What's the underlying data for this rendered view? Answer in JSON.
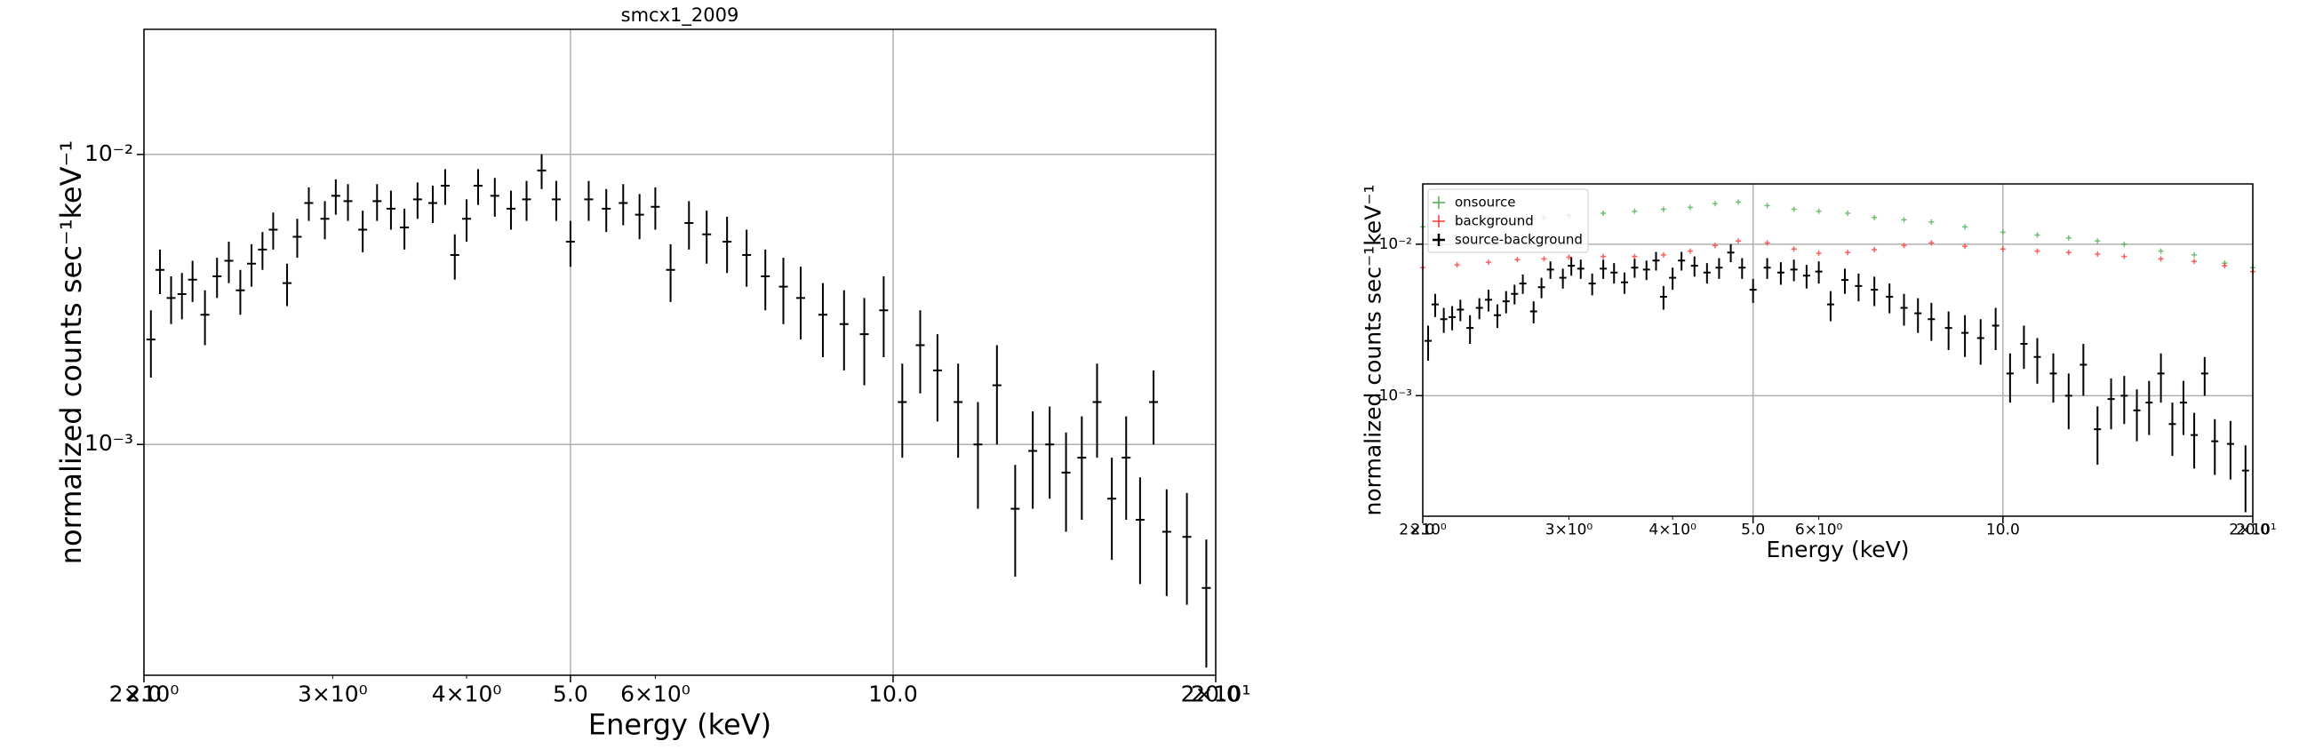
{
  "chart_data": [
    {
      "type": "errorbar",
      "title": "smcx1_2009",
      "xlabel": "Energy (keV)",
      "ylabel": "normalized counts sec⁻¹keV⁻¹",
      "xlog": true,
      "ylog": true,
      "grid": true,
      "color": "#000000",
      "xlim": [
        2,
        20
      ],
      "ylim": [
        0.00016,
        0.027
      ],
      "xticks": [
        {
          "value": 2,
          "label": "2.0"
        },
        {
          "value": 5,
          "label": "5.0"
        },
        {
          "value": 10,
          "label": "10.0"
        },
        {
          "value": 20,
          "label": "20.0"
        }
      ],
      "xminorticks": [
        {
          "value": 2,
          "label": "2×10⁰"
        },
        {
          "value": 3,
          "label": "3×10⁰"
        },
        {
          "value": 4,
          "label": "4×10⁰"
        },
        {
          "value": 6,
          "label": "6×10⁰"
        },
        {
          "value": 20,
          "label": "2×10¹"
        }
      ],
      "yticks": [
        {
          "value": 0.001,
          "label": "10⁻³"
        },
        {
          "value": 0.01,
          "label": "10⁻²"
        }
      ],
      "x": [
        2.03,
        2.07,
        2.12,
        2.17,
        2.22,
        2.28,
        2.34,
        2.4,
        2.46,
        2.52,
        2.58,
        2.64,
        2.72,
        2.78,
        2.85,
        2.95,
        3.02,
        3.1,
        3.2,
        3.3,
        3.4,
        3.5,
        3.6,
        3.72,
        3.82,
        3.9,
        4.0,
        4.1,
        4.25,
        4.4,
        4.55,
        4.7,
        4.85,
        5.0,
        5.2,
        5.4,
        5.6,
        5.8,
        6.0,
        6.2,
        6.45,
        6.7,
        7.0,
        7.3,
        7.6,
        7.9,
        8.2,
        8.6,
        9.0,
        9.4,
        9.8,
        10.2,
        10.6,
        11.0,
        11.5,
        12.0,
        12.5,
        13.0,
        13.5,
        14.0,
        14.5,
        15.0,
        15.5,
        16.0,
        16.5,
        17.0,
        17.5,
        18.0,
        18.8,
        19.6
      ],
      "values": [
        0.0023,
        0.004,
        0.0032,
        0.0033,
        0.0037,
        0.0028,
        0.0038,
        0.0043,
        0.0034,
        0.0042,
        0.0047,
        0.0055,
        0.0036,
        0.0052,
        0.0068,
        0.006,
        0.0072,
        0.0069,
        0.0055,
        0.0069,
        0.0065,
        0.0056,
        0.007,
        0.0068,
        0.0078,
        0.0045,
        0.006,
        0.0078,
        0.0072,
        0.0065,
        0.007,
        0.0088,
        0.007,
        0.005,
        0.007,
        0.0065,
        0.0068,
        0.0062,
        0.0066,
        0.004,
        0.0058,
        0.0053,
        0.005,
        0.0045,
        0.0038,
        0.0035,
        0.0032,
        0.0028,
        0.0026,
        0.0024,
        0.0029,
        0.0014,
        0.0022,
        0.0018,
        0.0014,
        0.001,
        0.0016,
        0.0006,
        0.00095,
        0.001,
        0.0008,
        0.0009,
        0.0014,
        0.00065,
        0.0009,
        0.00055,
        0.0014,
        0.0005,
        0.00048,
        0.00032
      ],
      "yerr": [
        0.0006,
        0.0007,
        0.0006,
        0.0006,
        0.0006,
        0.0006,
        0.0006,
        0.0007,
        0.0006,
        0.0007,
        0.0007,
        0.0008,
        0.0006,
        0.0008,
        0.0009,
        0.0009,
        0.001,
        0.001,
        0.0009,
        0.001,
        0.001,
        0.0009,
        0.001,
        0.001,
        0.0011,
        0.0008,
        0.001,
        0.0011,
        0.0011,
        0.001,
        0.0011,
        0.0012,
        0.0011,
        0.0009,
        0.0011,
        0.0011,
        0.0011,
        0.0011,
        0.0011,
        0.0009,
        0.0011,
        0.0011,
        0.0011,
        0.001,
        0.0009,
        0.0009,
        0.0009,
        0.0008,
        0.0008,
        0.0008,
        0.0009,
        0.0005,
        0.0007,
        0.0006,
        0.0005,
        0.0004,
        0.0006,
        0.00025,
        0.00035,
        0.00035,
        0.0003,
        0.00035,
        0.0005,
        0.00025,
        0.00035,
        0.00022,
        0.0004,
        0.0002,
        0.0002,
        0.00015
      ]
    },
    {
      "type": "errorbar",
      "xlabel": "Energy (keV)",
      "ylabel": "normalized counts sec⁻¹keV⁻¹",
      "xlog": true,
      "ylog": true,
      "grid": true,
      "legend": "upper left",
      "xlim": [
        2,
        20
      ],
      "ylim": [
        0.00016,
        0.025
      ],
      "xticks": [
        {
          "value": 2,
          "label": "2.0"
        },
        {
          "value": 5,
          "label": "5.0"
        },
        {
          "value": 10,
          "label": "10.0"
        },
        {
          "value": 20,
          "label": "20.0"
        }
      ],
      "xminorticks": [
        {
          "value": 2,
          "label": "2×10⁰"
        },
        {
          "value": 3,
          "label": "3×10⁰"
        },
        {
          "value": 4,
          "label": "4×10⁰"
        },
        {
          "value": 6,
          "label": "6×10⁰"
        },
        {
          "value": 20,
          "label": "2×10¹"
        }
      ],
      "yticks": [
        {
          "value": 0.001,
          "label": "10⁻³"
        },
        {
          "value": 0.01,
          "label": "10⁻²"
        }
      ],
      "series": [
        {
          "name": "onsource",
          "color": "#4caf50",
          "x": [
            2.0,
            2.2,
            2.4,
            2.6,
            2.8,
            3.0,
            3.3,
            3.6,
            3.9,
            4.2,
            4.5,
            4.8,
            5.2,
            5.6,
            6.0,
            6.5,
            7.0,
            7.6,
            8.2,
            9.0,
            10.0,
            11.0,
            12.0,
            13.0,
            14.0,
            15.5,
            17.0,
            18.5,
            20.0
          ],
          "values": [
            0.013,
            0.0135,
            0.014,
            0.0145,
            0.015,
            0.0155,
            0.016,
            0.0165,
            0.017,
            0.0175,
            0.0185,
            0.019,
            0.018,
            0.017,
            0.0165,
            0.016,
            0.015,
            0.0145,
            0.014,
            0.013,
            0.012,
            0.0115,
            0.011,
            0.0105,
            0.01,
            0.009,
            0.0085,
            0.0075,
            0.007
          ]
        },
        {
          "name": "background",
          "color": "#ff3333",
          "x": [
            2.0,
            2.2,
            2.4,
            2.6,
            2.8,
            3.0,
            3.3,
            3.6,
            3.9,
            4.2,
            4.5,
            4.8,
            5.2,
            5.6,
            6.0,
            6.5,
            7.0,
            7.6,
            8.2,
            9.0,
            10.0,
            11.0,
            12.0,
            13.0,
            14.0,
            15.5,
            17.0,
            18.5,
            20.0
          ],
          "values": [
            0.007,
            0.0073,
            0.0076,
            0.0079,
            0.008,
            0.0082,
            0.0083,
            0.0083,
            0.0085,
            0.009,
            0.0098,
            0.0105,
            0.0102,
            0.0093,
            0.0087,
            0.0088,
            0.0092,
            0.0098,
            0.0102,
            0.0097,
            0.0093,
            0.009,
            0.0088,
            0.0086,
            0.0083,
            0.008,
            0.0077,
            0.0072,
            0.0066
          ]
        },
        {
          "name": "source-background",
          "color": "#000000",
          "x": [
            2.03,
            2.07,
            2.12,
            2.17,
            2.22,
            2.28,
            2.34,
            2.4,
            2.46,
            2.52,
            2.58,
            2.64,
            2.72,
            2.78,
            2.85,
            2.95,
            3.02,
            3.1,
            3.2,
            3.3,
            3.4,
            3.5,
            3.6,
            3.72,
            3.82,
            3.9,
            4.0,
            4.1,
            4.25,
            4.4,
            4.55,
            4.7,
            4.85,
            5.0,
            5.2,
            5.4,
            5.6,
            5.8,
            6.0,
            6.2,
            6.45,
            6.7,
            7.0,
            7.3,
            7.6,
            7.9,
            8.2,
            8.6,
            9.0,
            9.4,
            9.8,
            10.2,
            10.6,
            11.0,
            11.5,
            12.0,
            12.5,
            13.0,
            13.5,
            14.0,
            14.5,
            15.0,
            15.5,
            16.0,
            16.5,
            17.0,
            17.5,
            18.0,
            18.8,
            19.6
          ],
          "values": [
            0.0023,
            0.004,
            0.0032,
            0.0033,
            0.0037,
            0.0028,
            0.0038,
            0.0043,
            0.0034,
            0.0042,
            0.0047,
            0.0055,
            0.0036,
            0.0052,
            0.0068,
            0.006,
            0.0072,
            0.0069,
            0.0055,
            0.0069,
            0.0065,
            0.0056,
            0.007,
            0.0068,
            0.0078,
            0.0045,
            0.006,
            0.0078,
            0.0072,
            0.0065,
            0.007,
            0.0088,
            0.007,
            0.005,
            0.007,
            0.0065,
            0.0068,
            0.0062,
            0.0066,
            0.004,
            0.0058,
            0.0053,
            0.005,
            0.0045,
            0.0038,
            0.0035,
            0.0032,
            0.0028,
            0.0026,
            0.0024,
            0.0029,
            0.0014,
            0.0022,
            0.0018,
            0.0014,
            0.001,
            0.0016,
            0.0006,
            0.00095,
            0.001,
            0.0008,
            0.0009,
            0.0014,
            0.00065,
            0.0009,
            0.00055,
            0.0014,
            0.0005,
            0.00048,
            0.00032
          ],
          "yerr": [
            0.0006,
            0.0007,
            0.0006,
            0.0006,
            0.0006,
            0.0006,
            0.0006,
            0.0007,
            0.0006,
            0.0007,
            0.0007,
            0.0008,
            0.0006,
            0.0008,
            0.0009,
            0.0009,
            0.001,
            0.001,
            0.0009,
            0.001,
            0.001,
            0.0009,
            0.001,
            0.001,
            0.0011,
            0.0008,
            0.001,
            0.0011,
            0.0011,
            0.001,
            0.0011,
            0.0012,
            0.0011,
            0.0009,
            0.0011,
            0.0011,
            0.0011,
            0.0011,
            0.0011,
            0.0009,
            0.0011,
            0.0011,
            0.0011,
            0.001,
            0.0009,
            0.0009,
            0.0009,
            0.0008,
            0.0008,
            0.0008,
            0.0009,
            0.0005,
            0.0007,
            0.0006,
            0.0005,
            0.0004,
            0.0006,
            0.00025,
            0.00035,
            0.00035,
            0.0003,
            0.00035,
            0.0005,
            0.00025,
            0.00035,
            0.00022,
            0.0004,
            0.0002,
            0.0002,
            0.00015
          ]
        }
      ]
    }
  ]
}
